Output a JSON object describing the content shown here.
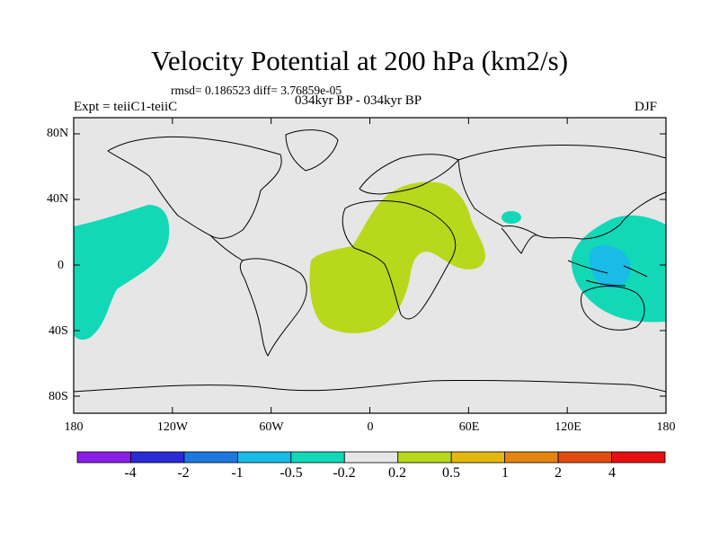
{
  "header": {
    "title": "Velocity Potential at 200 hPa (km2/s)",
    "stats": "rmsd= 0.186523 diff= 3.76859e-05",
    "experiment": "Expt = teiiC1-teiiC",
    "period": "034kyr BP - 034kyr BP",
    "season": "DJF"
  },
  "axes": {
    "y_ticks": [
      "80N",
      "40N",
      "0",
      "40S",
      "80S"
    ],
    "x_ticks": [
      "180",
      "120W",
      "60W",
      "0",
      "60E",
      "120E",
      "180"
    ]
  },
  "colorbar": {
    "labels": [
      "-4",
      "-2",
      "-1",
      "-0.5",
      "-0.2",
      "0.2",
      "0.5",
      "1",
      "2",
      "4"
    ],
    "colors": [
      "#8a1ee6",
      "#2a2ad6",
      "#1e78e0",
      "#18bce6",
      "#12d8b8",
      "#e6e6e6",
      "#b8d81c",
      "#e2b80e",
      "#e68410",
      "#e24c10",
      "#e61010"
    ]
  },
  "map": {
    "background": "#e6e6e6",
    "positive_color": "#b8d81c",
    "negative_color": "#12d8b8",
    "strong_negative_color": "#18bce6"
  }
}
